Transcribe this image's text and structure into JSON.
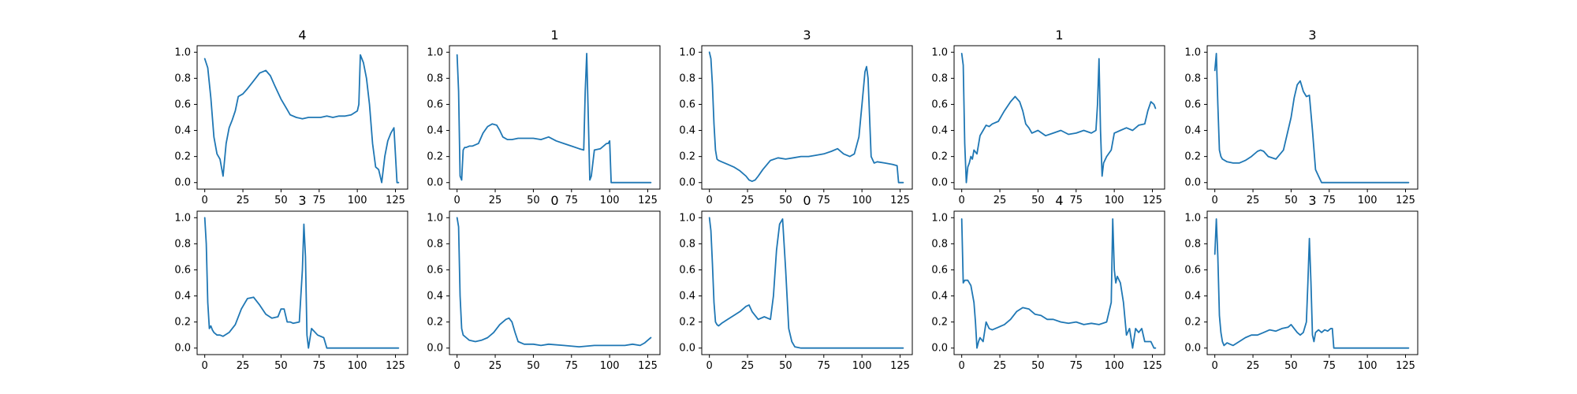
{
  "chart_data": [
    {
      "type": "line",
      "title": "4",
      "xlim": [
        -5,
        133
      ],
      "ylim": [
        -0.05,
        1.05
      ],
      "xticks": [
        0,
        25,
        50,
        75,
        100,
        125
      ],
      "yticks": [
        0.0,
        0.2,
        0.4,
        0.6,
        0.8,
        1.0
      ],
      "series": [
        {
          "x": [
            0,
            2,
            4,
            6,
            8,
            10,
            12,
            14,
            16,
            18,
            20,
            22,
            25,
            28,
            32,
            36,
            40,
            43,
            46,
            50,
            54,
            56,
            60,
            64,
            68,
            72,
            76,
            80,
            84,
            88,
            92,
            96,
            100,
            101,
            102,
            104,
            106,
            108,
            110,
            112,
            114,
            116,
            118,
            120,
            122,
            124,
            126,
            127
          ],
          "y": [
            0.95,
            0.88,
            0.65,
            0.35,
            0.22,
            0.18,
            0.05,
            0.3,
            0.42,
            0.48,
            0.55,
            0.66,
            0.68,
            0.72,
            0.78,
            0.84,
            0.86,
            0.82,
            0.74,
            0.64,
            0.56,
            0.52,
            0.5,
            0.49,
            0.5,
            0.5,
            0.5,
            0.51,
            0.5,
            0.51,
            0.51,
            0.52,
            0.55,
            0.6,
            0.98,
            0.92,
            0.8,
            0.6,
            0.3,
            0.12,
            0.1,
            0.0,
            0.2,
            0.32,
            0.38,
            0.42,
            0.0,
            0.0
          ]
        }
      ]
    },
    {
      "type": "line",
      "title": "1",
      "xlim": [
        -5,
        133
      ],
      "ylim": [
        -0.05,
        1.05
      ],
      "xticks": [
        0,
        25,
        50,
        75,
        100,
        125
      ],
      "yticks": [
        0.0,
        0.2,
        0.4,
        0.6,
        0.8,
        1.0
      ],
      "series": [
        {
          "x": [
            0,
            1,
            2,
            3,
            4,
            5,
            6,
            8,
            10,
            14,
            17,
            20,
            23,
            26,
            28,
            30,
            33,
            36,
            40,
            45,
            50,
            55,
            60,
            65,
            70,
            75,
            80,
            83,
            84,
            85,
            86,
            87,
            88,
            90,
            94,
            98,
            99,
            100,
            101,
            104,
            110,
            120,
            127
          ],
          "y": [
            0.98,
            0.7,
            0.05,
            0.02,
            0.25,
            0.27,
            0.27,
            0.28,
            0.28,
            0.3,
            0.38,
            0.43,
            0.45,
            0.44,
            0.4,
            0.35,
            0.33,
            0.33,
            0.34,
            0.34,
            0.34,
            0.33,
            0.35,
            0.32,
            0.3,
            0.28,
            0.26,
            0.25,
            0.7,
            0.99,
            0.5,
            0.02,
            0.05,
            0.25,
            0.26,
            0.3,
            0.3,
            0.32,
            0.0,
            0.0,
            0.0,
            0.0,
            0.0
          ]
        }
      ]
    },
    {
      "type": "line",
      "title": "3",
      "xlim": [
        -5,
        133
      ],
      "ylim": [
        -0.05,
        1.05
      ],
      "xticks": [
        0,
        25,
        50,
        75,
        100,
        125
      ],
      "yticks": [
        0.0,
        0.2,
        0.4,
        0.6,
        0.8,
        1.0
      ],
      "series": [
        {
          "x": [
            0,
            1,
            2,
            3,
            4,
            5,
            6,
            8,
            12,
            16,
            20,
            24,
            26,
            28,
            30,
            32,
            35,
            40,
            45,
            50,
            55,
            60,
            65,
            70,
            75,
            80,
            84,
            88,
            92,
            95,
            98,
            100,
            102,
            103,
            104,
            106,
            108,
            110,
            115,
            120,
            123,
            124,
            125,
            127
          ],
          "y": [
            1.0,
            0.95,
            0.75,
            0.45,
            0.25,
            0.18,
            0.17,
            0.16,
            0.14,
            0.12,
            0.09,
            0.05,
            0.02,
            0.01,
            0.02,
            0.05,
            0.1,
            0.17,
            0.19,
            0.18,
            0.19,
            0.2,
            0.2,
            0.21,
            0.22,
            0.24,
            0.26,
            0.22,
            0.2,
            0.22,
            0.35,
            0.6,
            0.85,
            0.89,
            0.8,
            0.2,
            0.15,
            0.16,
            0.15,
            0.14,
            0.13,
            0.0,
            0.0,
            0.0
          ]
        }
      ]
    },
    {
      "type": "line",
      "title": "1",
      "xlim": [
        -5,
        133
      ],
      "ylim": [
        -0.05,
        1.05
      ],
      "xticks": [
        0,
        25,
        50,
        75,
        100,
        125
      ],
      "yticks": [
        0.0,
        0.2,
        0.4,
        0.6,
        0.8,
        1.0
      ],
      "series": [
        {
          "x": [
            0,
            1,
            2,
            3,
            4,
            5,
            6,
            7,
            8,
            10,
            12,
            14,
            16,
            18,
            20,
            24,
            28,
            32,
            35,
            38,
            40,
            42,
            44,
            46,
            50,
            55,
            60,
            65,
            70,
            75,
            80,
            85,
            88,
            89,
            90,
            91,
            92,
            93,
            95,
            98,
            100,
            104,
            108,
            112,
            116,
            120,
            122,
            124,
            126,
            127
          ],
          "y": [
            0.99,
            0.9,
            0.3,
            0.0,
            0.12,
            0.15,
            0.2,
            0.18,
            0.25,
            0.22,
            0.36,
            0.4,
            0.44,
            0.43,
            0.45,
            0.47,
            0.55,
            0.62,
            0.66,
            0.62,
            0.55,
            0.45,
            0.42,
            0.38,
            0.4,
            0.36,
            0.38,
            0.4,
            0.37,
            0.38,
            0.4,
            0.38,
            0.4,
            0.6,
            0.95,
            0.4,
            0.05,
            0.15,
            0.2,
            0.25,
            0.38,
            0.4,
            0.42,
            0.4,
            0.44,
            0.45,
            0.55,
            0.62,
            0.6,
            0.57
          ]
        }
      ]
    },
    {
      "type": "line",
      "title": "3",
      "xlim": [
        -5,
        133
      ],
      "ylim": [
        -0.05,
        1.05
      ],
      "xticks": [
        0,
        25,
        50,
        75,
        100,
        125
      ],
      "yticks": [
        0.0,
        0.2,
        0.4,
        0.6,
        0.8,
        1.0
      ],
      "series": [
        {
          "x": [
            0,
            1,
            2,
            3,
            4,
            5,
            8,
            12,
            16,
            20,
            24,
            28,
            30,
            32,
            35,
            40,
            45,
            50,
            52,
            54,
            56,
            58,
            60,
            62,
            64,
            66,
            68,
            70,
            75,
            80,
            127
          ],
          "y": [
            0.86,
            0.99,
            0.6,
            0.25,
            0.2,
            0.18,
            0.16,
            0.15,
            0.15,
            0.17,
            0.2,
            0.24,
            0.25,
            0.24,
            0.2,
            0.18,
            0.25,
            0.5,
            0.65,
            0.75,
            0.78,
            0.7,
            0.66,
            0.67,
            0.4,
            0.1,
            0.05,
            0.0,
            0.0,
            0.0,
            0.0
          ]
        }
      ]
    },
    {
      "type": "line",
      "title": "3",
      "xlim": [
        -5,
        133
      ],
      "ylim": [
        -0.05,
        1.05
      ],
      "xticks": [
        0,
        25,
        50,
        75,
        100,
        125
      ],
      "yticks": [
        0.0,
        0.2,
        0.4,
        0.6,
        0.8,
        1.0
      ],
      "series": [
        {
          "x": [
            0,
            1,
            2,
            3,
            4,
            5,
            6,
            8,
            10,
            12,
            16,
            20,
            24,
            28,
            32,
            36,
            40,
            44,
            48,
            50,
            52,
            54,
            56,
            58,
            62,
            64,
            65,
            66,
            67,
            68,
            70,
            74,
            78,
            80,
            82,
            90,
            127
          ],
          "y": [
            1.0,
            0.8,
            0.35,
            0.15,
            0.17,
            0.14,
            0.12,
            0.1,
            0.1,
            0.09,
            0.12,
            0.18,
            0.3,
            0.38,
            0.39,
            0.33,
            0.26,
            0.23,
            0.24,
            0.3,
            0.3,
            0.2,
            0.2,
            0.19,
            0.2,
            0.6,
            0.95,
            0.7,
            0.1,
            0.0,
            0.15,
            0.1,
            0.08,
            0.0,
            0.0,
            0.0,
            0.0
          ]
        }
      ]
    },
    {
      "type": "line",
      "title": "0",
      "xlim": [
        -5,
        133
      ],
      "ylim": [
        -0.05,
        1.05
      ],
      "xticks": [
        0,
        25,
        50,
        75,
        100,
        125
      ],
      "yticks": [
        0.0,
        0.2,
        0.4,
        0.6,
        0.8,
        1.0
      ],
      "series": [
        {
          "x": [
            0,
            1,
            2,
            3,
            4,
            5,
            6,
            8,
            12,
            16,
            20,
            24,
            28,
            32,
            34,
            36,
            38,
            40,
            44,
            50,
            55,
            60,
            70,
            80,
            90,
            100,
            110,
            115,
            120,
            123,
            126,
            127
          ],
          "y": [
            1.0,
            0.93,
            0.4,
            0.15,
            0.1,
            0.09,
            0.08,
            0.06,
            0.05,
            0.06,
            0.08,
            0.12,
            0.18,
            0.22,
            0.23,
            0.2,
            0.12,
            0.05,
            0.03,
            0.03,
            0.02,
            0.03,
            0.02,
            0.01,
            0.02,
            0.02,
            0.02,
            0.03,
            0.02,
            0.04,
            0.07,
            0.08
          ]
        }
      ]
    },
    {
      "type": "line",
      "title": "0",
      "xlim": [
        -5,
        133
      ],
      "ylim": [
        -0.05,
        1.05
      ],
      "xticks": [
        0,
        25,
        50,
        75,
        100,
        125
      ],
      "yticks": [
        0.0,
        0.2,
        0.4,
        0.6,
        0.8,
        1.0
      ],
      "series": [
        {
          "x": [
            0,
            1,
            2,
            3,
            4,
            5,
            6,
            8,
            12,
            16,
            20,
            24,
            26,
            28,
            30,
            32,
            36,
            40,
            42,
            44,
            46,
            48,
            50,
            52,
            54,
            56,
            60,
            70,
            80,
            100,
            127
          ],
          "y": [
            1.0,
            0.9,
            0.65,
            0.35,
            0.2,
            0.18,
            0.17,
            0.19,
            0.22,
            0.25,
            0.28,
            0.32,
            0.33,
            0.28,
            0.25,
            0.22,
            0.24,
            0.22,
            0.4,
            0.75,
            0.95,
            0.99,
            0.6,
            0.15,
            0.05,
            0.01,
            0.0,
            0.0,
            0.0,
            0.0,
            0.0
          ]
        }
      ]
    },
    {
      "type": "line",
      "title": "4",
      "xlim": [
        -5,
        133
      ],
      "ylim": [
        -0.05,
        1.05
      ],
      "xticks": [
        0,
        25,
        50,
        75,
        100,
        125
      ],
      "yticks": [
        0.0,
        0.2,
        0.4,
        0.6,
        0.8,
        1.0
      ],
      "series": [
        {
          "x": [
            0,
            1,
            2,
            4,
            6,
            8,
            9,
            10,
            11,
            12,
            14,
            16,
            18,
            20,
            24,
            28,
            32,
            36,
            40,
            44,
            48,
            52,
            56,
            60,
            65,
            70,
            75,
            80,
            85,
            90,
            95,
            98,
            99,
            100,
            101,
            102,
            104,
            106,
            108,
            110,
            112,
            114,
            116,
            118,
            120,
            122,
            124,
            126,
            127
          ],
          "y": [
            0.99,
            0.5,
            0.52,
            0.52,
            0.48,
            0.35,
            0.2,
            0.0,
            0.05,
            0.08,
            0.05,
            0.2,
            0.15,
            0.14,
            0.16,
            0.18,
            0.22,
            0.28,
            0.31,
            0.3,
            0.26,
            0.25,
            0.22,
            0.22,
            0.2,
            0.19,
            0.2,
            0.18,
            0.19,
            0.18,
            0.2,
            0.35,
            0.99,
            0.6,
            0.5,
            0.55,
            0.5,
            0.35,
            0.1,
            0.15,
            0.0,
            0.15,
            0.12,
            0.15,
            0.05,
            0.05,
            0.05,
            0.0,
            0.0
          ]
        }
      ]
    },
    {
      "type": "line",
      "title": "3",
      "xlim": [
        -5,
        133
      ],
      "ylim": [
        -0.05,
        1.05
      ],
      "xticks": [
        0,
        25,
        50,
        75,
        100,
        125
      ],
      "yticks": [
        0.0,
        0.2,
        0.4,
        0.6,
        0.8,
        1.0
      ],
      "series": [
        {
          "x": [
            0,
            1,
            2,
            3,
            4,
            5,
            6,
            8,
            10,
            12,
            16,
            20,
            24,
            28,
            32,
            36,
            40,
            44,
            48,
            50,
            52,
            54,
            56,
            58,
            60,
            61,
            62,
            63,
            64,
            65,
            66,
            68,
            70,
            72,
            74,
            76,
            77,
            78,
            80,
            100,
            127
          ],
          "y": [
            0.72,
            0.99,
            0.7,
            0.25,
            0.12,
            0.05,
            0.02,
            0.04,
            0.03,
            0.02,
            0.05,
            0.08,
            0.1,
            0.1,
            0.12,
            0.14,
            0.13,
            0.15,
            0.16,
            0.18,
            0.15,
            0.12,
            0.1,
            0.12,
            0.2,
            0.5,
            0.84,
            0.5,
            0.1,
            0.05,
            0.12,
            0.14,
            0.12,
            0.14,
            0.13,
            0.15,
            0.15,
            0.0,
            0.0,
            0.0,
            0.0
          ]
        }
      ]
    }
  ]
}
